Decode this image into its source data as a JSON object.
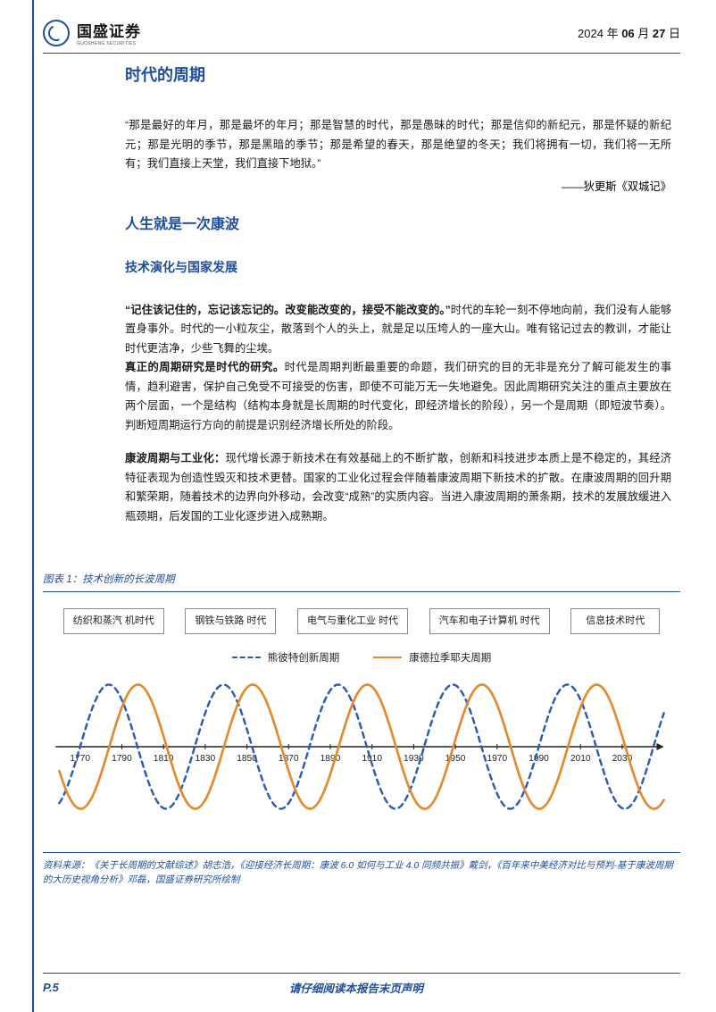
{
  "header": {
    "company_cn": "国盛证券",
    "company_en": "GUOSHENG SECURITIES",
    "date_prefix": "2024 年 ",
    "date_month": "06",
    "date_mid": " 月 ",
    "date_day": "27",
    "date_suffix": " 日"
  },
  "headings": {
    "h1": "时代的周期",
    "h2": "人生就是一次康波",
    "h3": "技术演化与国家发展"
  },
  "paragraphs": {
    "quote": "“那是最好的年月，那是最坏的年月；那是智慧的时代，那是愚昧的时代；那是信仰的新纪元，那是怀疑的新纪元；那是光明的季节，那是黑暗的季节；那是希望的春天，那是绝望的冬天；我们将拥有一切，我们将一无所有；我们直接上天堂，我们直接下地狱。”",
    "quote_attr": "——狄更斯《双城记》",
    "p1_bold": "“记住该记住的，忘记该忘记的。改变能改变的，接受不能改变的。”",
    "p1_rest": "时代的车轮一刻不停地向前，我们没有人能够置身事外。时代的一小粒灰尘，散落到个人的头上，就是足以压垮人的一座大山。唯有铭记过去的教训，才能让时代更洁净，少些飞舞的尘埃。",
    "p2_bold": "真正的周期研究是时代的研究。",
    "p2_rest": "时代是周期判断最重要的命题，我们研究的目的无非是充分了解可能发生的事情，趋利避害，保护自己免受不可接受的伤害，即使不可能万无一失地避免。因此周期研究关注的重点主要放在两个层面，一个是结构（结构本身就是长周期的时代变化，即经济增长的阶段），另一个是周期（即短波节奏）。判断短周期运行方向的前提是识别经济增长所处的阶段。",
    "p3_bold": "康波周期与工业化：",
    "p3_rest": "现代增长源于新技术在有效基础上的不断扩散，创新和科技进步本质上是不稳定的，其经济特征表现为创造性毁灭和技术更替。国家的工业化过程会伴随着康波周期下新技术的扩散。在康波周期的回升期和繁荣期，随着技术的边界向外移动，会改变“成熟”的实质内容。当进入康波周期的萧条期，技术的发展放缓进入瓶颈期，后发国的工业化逐步进入成熟期。"
  },
  "figure": {
    "caption": "图表 1：技术创新的长波周期",
    "eras": [
      "纺织和蒸汽\n机时代",
      "钢铁与铁路\n时代",
      "电气与重化工业\n时代",
      "汽车和电子计算机\n时代",
      "信息技术时代"
    ],
    "legend": {
      "a": "熊彼特创新周期",
      "b": "康德拉季耶夫周期"
    },
    "chart": {
      "type": "line",
      "x_ticks": [
        1770,
        1790,
        1810,
        1830,
        1850,
        1870,
        1890,
        1910,
        1930,
        1950,
        1970,
        1990,
        2010,
        2030
      ],
      "xlim": [
        1760,
        2050
      ],
      "ylim": [
        -1.15,
        1.15
      ],
      "axis_y": 0,
      "series": [
        {
          "name": "schumpeter",
          "color": "#2b5bb5",
          "stroke_width": 2.4,
          "dash": "6,5",
          "period_years": 55,
          "phase_start": 1770,
          "amplitude": 1.0
        },
        {
          "name": "kondratiev",
          "color": "#e38a2e",
          "stroke_width": 2.6,
          "dash": "",
          "period_years": 55,
          "phase_start": 1784,
          "amplitude": 1.0
        }
      ],
      "tick_fontsize": 10,
      "tick_color": "#222222",
      "axis_color": "#222222",
      "background_color": "#ffffff",
      "arrow_head": true
    },
    "source": "资料来源：《关于长周期的文献综述》胡志浩，《迎接经济长周期：康波 6.0 如何与工业 4.0 同频共振》戴剑，《百年来中美经济对比与预判-基于康波周期的大历史视角分析》邓磊，国盛证券研究所绘制"
  },
  "footer": {
    "page": "P.5",
    "note": "请仔细阅读本报告末页声明"
  },
  "colors": {
    "brand": "#1f4e9c",
    "text": "#1a1a1a",
    "series_a": "#2b5bb5",
    "series_b": "#e38a2e"
  }
}
